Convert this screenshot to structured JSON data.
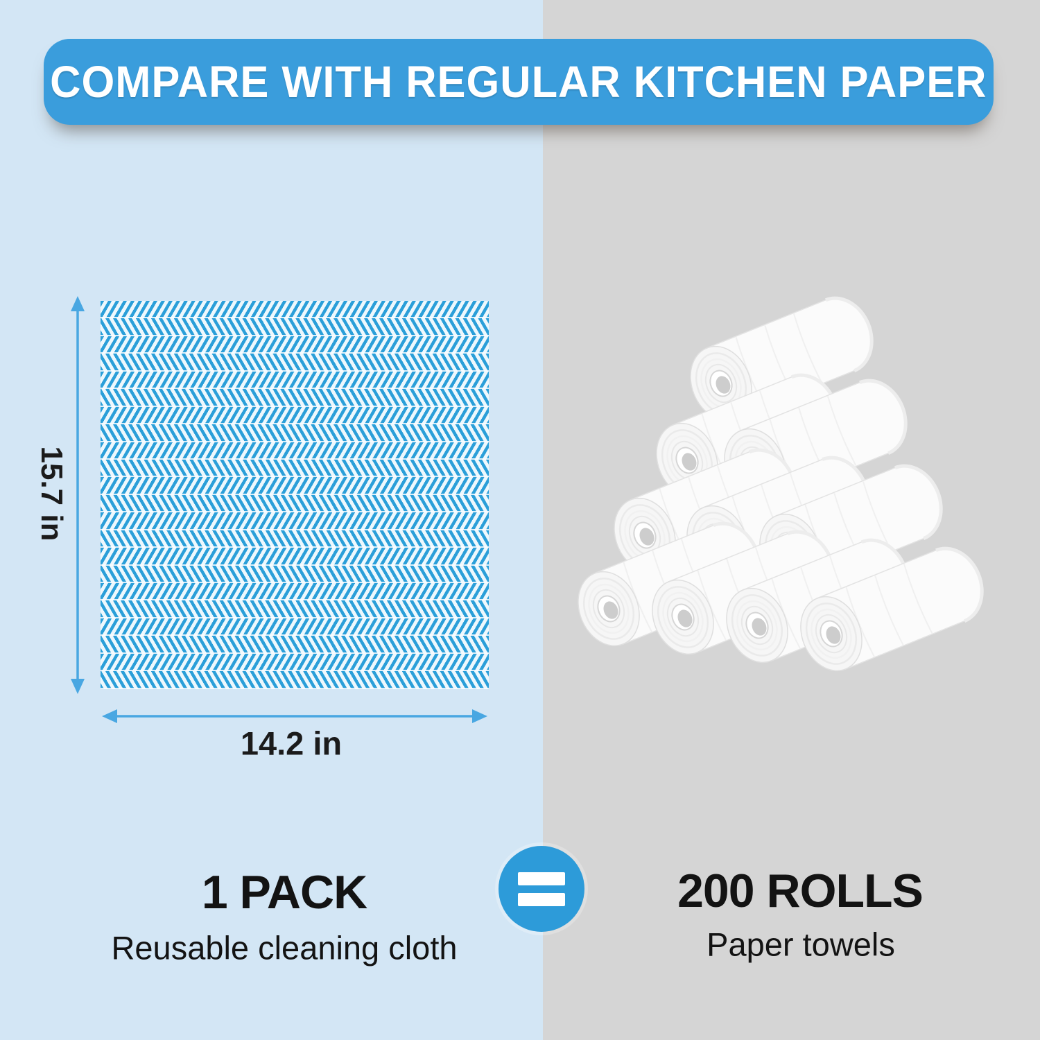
{
  "banner": {
    "title": "COMPARE WITH REGULAR KITCHEN PAPER"
  },
  "cloth": {
    "height_label": "15.7 in",
    "width_label": "14.2 in"
  },
  "comparison": {
    "left": {
      "headline": "1 PACK",
      "caption": "Reusable cleaning cloth"
    },
    "right": {
      "headline": "200 ROLLS",
      "caption": "Paper towels"
    },
    "equals_icon": "equals-icon"
  },
  "icons": {
    "equals": "=",
    "height_arrow": "vertical-double-arrow",
    "width_arrow": "horizontal-double-arrow"
  },
  "colors": {
    "banner_blue": "#3a9ddc",
    "left_background": "#d3e6f5",
    "right_background": "#d5d5d5",
    "cloth_blue": "#2b9fd9",
    "arrow_blue": "#49a7e2",
    "equals_circle_blue": "#2d9bd9",
    "text_dark": "#131313",
    "roll_white": "#fbfbfb"
  }
}
